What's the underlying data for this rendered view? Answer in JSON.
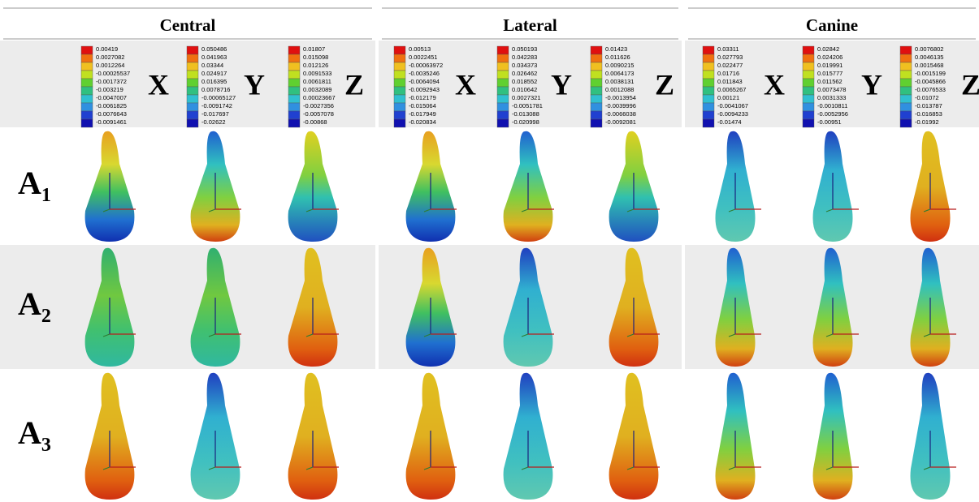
{
  "columns": [
    {
      "title": "Central",
      "legends": [
        {
          "axis": "X",
          "labels": [
            "0.00419",
            "0.0027082",
            "0.0012264",
            "-0.00025537",
            "-0.0017372",
            "-0.003219",
            "-0.0047007",
            "-0.0061825",
            "-0.0076643",
            "-0.0091461"
          ]
        },
        {
          "axis": "Y",
          "labels": [
            "0.050486",
            "0.041963",
            "0.03344",
            "0.024917",
            "0.016395",
            "0.0078716",
            "-0.00065127",
            "-0.0091742",
            "-0.017697",
            "-0.02622"
          ]
        },
        {
          "axis": "Z",
          "labels": [
            "0.01807",
            "0.015098",
            "0.012126",
            "0.0091533",
            "0.0061811",
            "0.0032089",
            "0.00023667",
            "-0.0027356",
            "-0.0057078",
            "-0.00868"
          ]
        }
      ]
    },
    {
      "title": "Lateral",
      "legends": [
        {
          "axis": "X",
          "labels": [
            "0.00513",
            "0.0022451",
            "-0.00063972",
            "-0.0035246",
            "-0.0064094",
            "-0.0092943",
            "-0.012179",
            "-0.015064",
            "-0.017949",
            "-0.020834"
          ]
        },
        {
          "axis": "Y",
          "labels": [
            "0.050193",
            "0.042283",
            "0.034373",
            "0.026462",
            "0.018552",
            "0.010642",
            "0.0027321",
            "-0.0051781",
            "-0.013088",
            "-0.020998"
          ]
        },
        {
          "axis": "Z",
          "labels": [
            "0.01423",
            "0.011626",
            "0.0090215",
            "0.0064173",
            "0.0038131",
            "0.0012088",
            "-0.0013954",
            "-0.0039996",
            "-0.0066038",
            "-0.0092081"
          ]
        }
      ]
    },
    {
      "title": "Canine",
      "legends": [
        {
          "axis": "X",
          "labels": [
            "0.03311",
            "0.027793",
            "0.022477",
            "0.01716",
            "0.011843",
            "0.0065267",
            "0.00121",
            "-0.0041067",
            "-0.0094233",
            "-0.01474"
          ]
        },
        {
          "axis": "Y",
          "labels": [
            "0.02842",
            "0.024206",
            "0.019991",
            "0.015777",
            "0.011562",
            "0.0073478",
            "0.0031333",
            "-0.0010811",
            "-0.0052956",
            "-0.00951"
          ]
        },
        {
          "axis": "Z",
          "labels": [
            "0.0076802",
            "0.0046135",
            "0.0015468",
            "-0.0015199",
            "-0.0045866",
            "-0.0076533",
            "-0.01072",
            "-0.013787",
            "-0.016853",
            "-0.01992"
          ]
        }
      ]
    }
  ],
  "rows": [
    {
      "letter": "A",
      "sub": "1"
    },
    {
      "letter": "A",
      "sub": "2"
    },
    {
      "letter": "A",
      "sub": "3"
    }
  ]
}
